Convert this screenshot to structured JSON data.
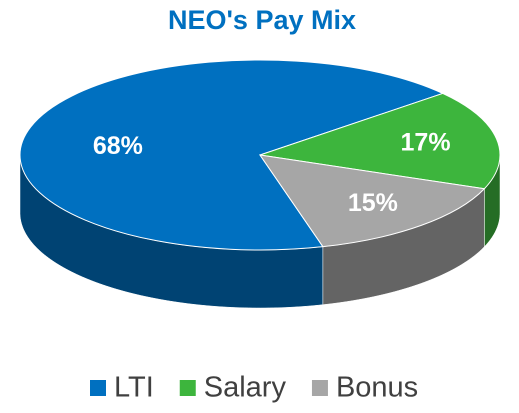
{
  "chart_data": {
    "type": "pie",
    "title": "NEO's Pay Mix",
    "categories": [
      "LTI",
      "Salary",
      "Bonus"
    ],
    "values": [
      68,
      17,
      15
    ],
    "value_labels": [
      "68%",
      "17%",
      "15%"
    ],
    "colors": [
      "#0070c0",
      "#3db53d",
      "#a6a6a6"
    ],
    "legend": "bottom"
  }
}
